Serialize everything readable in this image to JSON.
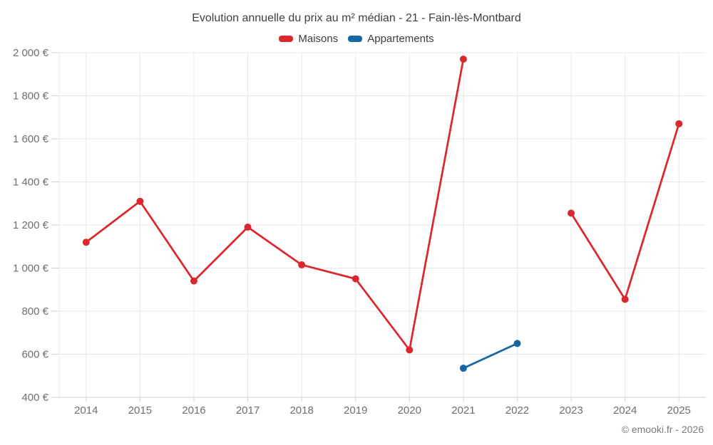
{
  "title": "Evolution annuelle du prix au m² médian - 21 - Fain-lès-Montbard",
  "footer": "© emooki.fr - 2026",
  "legend": [
    {
      "label": "Maisons",
      "color": "#d9282e"
    },
    {
      "label": "Appartements",
      "color": "#1667a2"
    }
  ],
  "colors": {
    "maisons": "#d9282e",
    "appartements": "#1667a2",
    "grid": "#e8e8e8",
    "axis": "#d0d0d0",
    "tick_label": "#6e6e6e",
    "title_text": "#3e3e3e",
    "footer_text": "#7a7a7a"
  },
  "chart_data": {
    "type": "line",
    "title": "Evolution annuelle du prix au m² médian - 21 - Fain-lès-Montbard",
    "x": [
      "2014",
      "2015",
      "2016",
      "2017",
      "2018",
      "2019",
      "2020",
      "2021",
      "2022",
      "2023",
      "2024",
      "2025"
    ],
    "series": [
      {
        "name": "Maisons",
        "color": "#d9282e",
        "values": [
          1120,
          1310,
          940,
          1190,
          1015,
          950,
          620,
          1970,
          null,
          1255,
          855,
          1670
        ]
      },
      {
        "name": "Appartements",
        "color": "#1667a2",
        "values": [
          null,
          null,
          null,
          null,
          null,
          null,
          null,
          535,
          650,
          null,
          null,
          null
        ]
      }
    ],
    "ylim": [
      400,
      2000
    ],
    "yticks": [
      400,
      600,
      800,
      1000,
      1200,
      1400,
      1600,
      1800,
      2000
    ],
    "ytick_labels": [
      "400 €",
      "600 €",
      "800 €",
      "1 000 €",
      "1 200 €",
      "1 400 €",
      "1 600 €",
      "1 800 €",
      "2 000 €"
    ],
    "unit": "€",
    "grid": true,
    "legend_position": "top"
  }
}
